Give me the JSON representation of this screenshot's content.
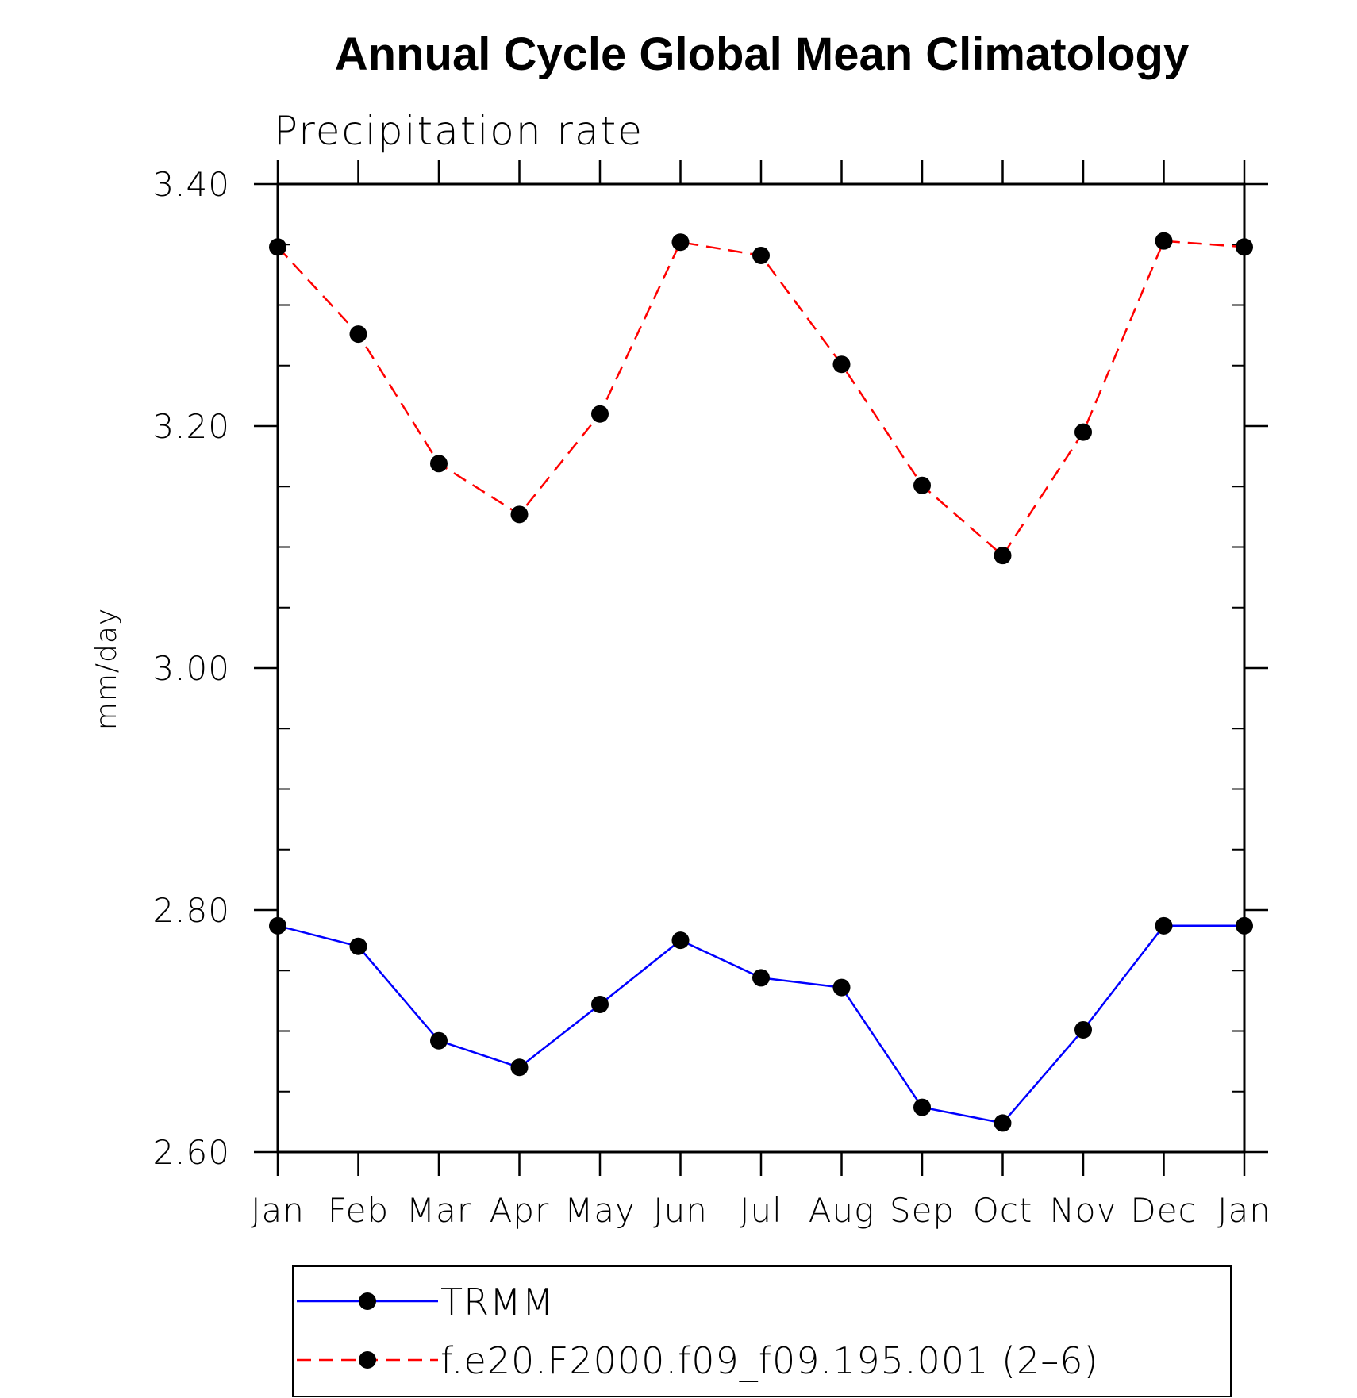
{
  "chart_data": {
    "type": "line",
    "title": "Annual Cycle Global Mean Climatology",
    "subtitle": "Precipitation rate",
    "ylabel": "mm/day",
    "xlabel": "",
    "categories": [
      "Jan",
      "Feb",
      "Mar",
      "Apr",
      "May",
      "Jun",
      "Jul",
      "Aug",
      "Sep",
      "Oct",
      "Nov",
      "Dec",
      "Jan"
    ],
    "ylim": [
      2.6,
      3.4
    ],
    "y_ticks": [
      "2.60",
      "2.80",
      "3.00",
      "3.20",
      "3.40"
    ],
    "grid": false,
    "legend_position": "bottom",
    "series": [
      {
        "name": "TRMM",
        "color": "#0000ff",
        "line_style": "solid",
        "marker": "filled-circle",
        "values": [
          2.787,
          2.77,
          2.692,
          2.67,
          2.722,
          2.775,
          2.744,
          2.736,
          2.637,
          2.624,
          2.701,
          2.787,
          2.787
        ]
      },
      {
        "name": "f.e20.F2000.f09_f09.195.001 (2–6)",
        "color": "#ff0000",
        "line_style": "dashed",
        "marker": "filled-circle",
        "values": [
          3.348,
          3.276,
          3.169,
          3.127,
          3.21,
          3.352,
          3.341,
          3.251,
          3.151,
          3.093,
          3.195,
          3.353,
          3.348
        ]
      }
    ]
  }
}
